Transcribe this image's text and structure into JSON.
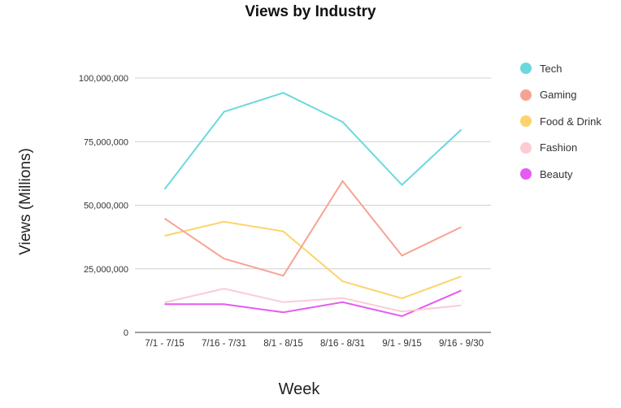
{
  "title": "Views by Industry",
  "axes": {
    "xlabel": "Week",
    "ylabel": "Views (Millions)",
    "yticks": [
      "0",
      "25,000,000",
      "50,000,000",
      "75,000,000",
      "100,000,000"
    ]
  },
  "legend": [
    {
      "label": "Tech",
      "color": "#6ad8de"
    },
    {
      "label": "Gaming",
      "color": "#f7a394"
    },
    {
      "label": "Food & Drink",
      "color": "#fdd36b"
    },
    {
      "label": "Fashion",
      "color": "#fccbd4"
    },
    {
      "label": "Beauty",
      "color": "#e45cf0"
    }
  ],
  "chart_data": {
    "type": "line",
    "title": "Views by Industry",
    "xlabel": "Week",
    "ylabel": "Views (Millions)",
    "categories": [
      "7/1 - 7/15",
      "7/16 - 7/31",
      "8/1 - 8/15",
      "8/16 - 8/31",
      "9/1 - 9/15",
      "9/16 - 9/30"
    ],
    "ylim": [
      0,
      100000000
    ],
    "yticks": [
      0,
      25000000,
      50000000,
      75000000,
      100000000
    ],
    "grid": true,
    "legend_position": "right",
    "series": [
      {
        "name": "Tech",
        "color": "#6ad8de",
        "values": [
          56300000,
          86700000,
          94200000,
          82700000,
          58000000,
          79700000
        ]
      },
      {
        "name": "Gaming",
        "color": "#f7a394",
        "values": [
          44800000,
          29000000,
          22300000,
          59500000,
          30200000,
          41400000
        ]
      },
      {
        "name": "Food & Drink",
        "color": "#fdd36b",
        "values": [
          38000000,
          43500000,
          39700000,
          20100000,
          13400000,
          22000000
        ]
      },
      {
        "name": "Fashion",
        "color": "#fccbd4",
        "values": [
          11800000,
          17200000,
          11900000,
          13500000,
          8200000,
          10600000
        ]
      },
      {
        "name": "Beauty",
        "color": "#e45cf0",
        "values": [
          11100000,
          11100000,
          7900000,
          11900000,
          6400000,
          16500000
        ]
      }
    ]
  }
}
